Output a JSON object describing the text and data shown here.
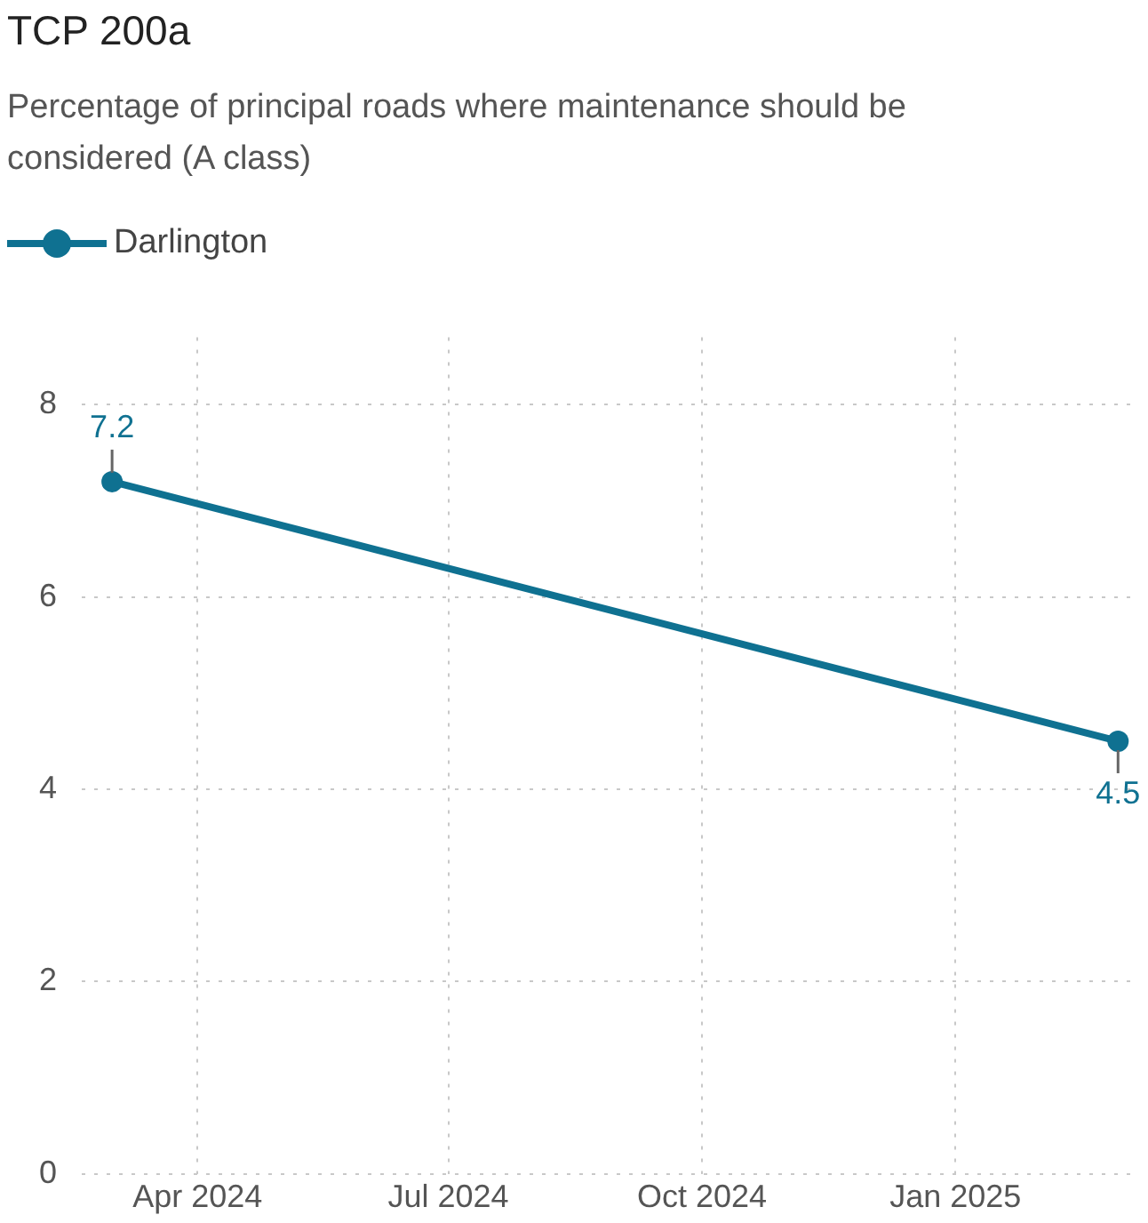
{
  "chart_data": {
    "type": "line",
    "title": "TCP 200a",
    "subtitle": "Percentage of principal roads where maintenance should be considered (A class)",
    "x": [
      "2024-03-01",
      "2025-03-01"
    ],
    "series": [
      {
        "name": "Darlington",
        "color": "#0f7191",
        "values": [
          7.2,
          4.5
        ]
      }
    ],
    "xlim": [
      "2024-02-19",
      "2025-03-08"
    ],
    "xticks": [
      {
        "value": "2024-04-01",
        "label": "Apr 2024"
      },
      {
        "value": "2024-07-01",
        "label": "Jul 2024"
      },
      {
        "value": "2024-10-01",
        "label": "Oct 2024"
      },
      {
        "value": "2025-01-01",
        "label": "Jan 2025"
      }
    ],
    "ylim": [
      0,
      8.7
    ],
    "yticks": [
      0,
      2,
      4,
      6,
      8
    ],
    "grid": true,
    "legend": "top left",
    "marker": "circle",
    "line_style": "solid",
    "data_labels": true
  }
}
